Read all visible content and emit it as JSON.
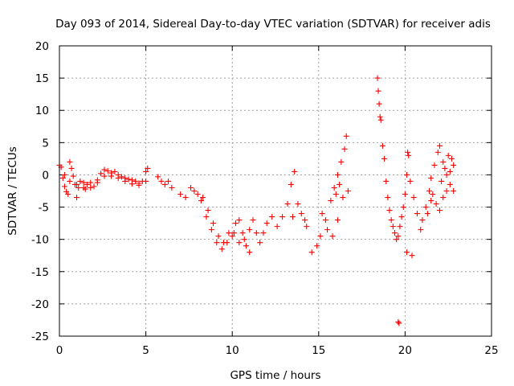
{
  "chart_data": {
    "type": "scatter",
    "title": "Day 093 of 2014, Sidereal Day-to-day VTEC variation (SDTVAR) for receiver adis",
    "xlabel": "GPS time / hours",
    "ylabel": "SDTVAR / TECUs",
    "xlim": [
      0,
      25
    ],
    "ylim": [
      -25,
      20
    ],
    "xticks": [
      0,
      5,
      10,
      15,
      20,
      25
    ],
    "yticks": [
      -25,
      -20,
      -15,
      -10,
      -5,
      0,
      5,
      10,
      15,
      20
    ],
    "grid": true,
    "marker": "plus",
    "colors": {
      "series": "#ff0000",
      "axes": "#000000",
      "grid": "#a0a0a0"
    },
    "series": [
      {
        "name": "SDTVAR",
        "points": [
          [
            0.0,
            1.5
          ],
          [
            0.1,
            1.2
          ],
          [
            0.2,
            -0.5
          ],
          [
            0.3,
            -1.8
          ],
          [
            0.4,
            -2.6
          ],
          [
            0.5,
            -3.0
          ],
          [
            0.6,
            2.0
          ],
          [
            0.7,
            1.0
          ],
          [
            0.8,
            -0.2
          ],
          [
            0.9,
            -1.5
          ],
          [
            1.0,
            -3.5
          ],
          [
            1.1,
            -2.0
          ],
          [
            1.2,
            -1.0
          ],
          [
            1.4,
            -2.0
          ],
          [
            1.5,
            -2.2
          ],
          [
            1.6,
            -1.5
          ],
          [
            1.8,
            -1.2
          ],
          [
            2.0,
            -1.8
          ],
          [
            2.2,
            -0.8
          ],
          [
            2.4,
            0.2
          ],
          [
            2.6,
            0.8
          ],
          [
            2.8,
            0.6
          ],
          [
            3.0,
            0.3
          ],
          [
            3.2,
            0.5
          ],
          [
            3.4,
            0.0
          ],
          [
            3.6,
            -0.3
          ],
          [
            3.8,
            -0.5
          ],
          [
            4.0,
            -0.7
          ],
          [
            4.2,
            -0.8
          ],
          [
            4.4,
            -1.0
          ],
          [
            4.6,
            -1.3
          ],
          [
            4.8,
            -1.0
          ],
          [
            5.0,
            0.5
          ],
          [
            5.1,
            1.0
          ],
          [
            0.3,
            0.0
          ],
          [
            0.6,
            -1.0
          ],
          [
            1.0,
            -1.5
          ],
          [
            1.4,
            -1.2
          ],
          [
            1.8,
            -2.0
          ],
          [
            2.2,
            -1.2
          ],
          [
            2.6,
            -0.2
          ],
          [
            3.0,
            -0.2
          ],
          [
            3.4,
            -0.5
          ],
          [
            3.8,
            -1.0
          ],
          [
            4.2,
            -1.4
          ],
          [
            4.6,
            -1.6
          ],
          [
            5.0,
            -1.0
          ],
          [
            5.7,
            -0.3
          ],
          [
            5.9,
            -1.0
          ],
          [
            6.1,
            -1.5
          ],
          [
            6.3,
            -1.0
          ],
          [
            6.5,
            -2.0
          ],
          [
            7.0,
            -3.0
          ],
          [
            7.3,
            -3.5
          ],
          [
            7.6,
            -2.0
          ],
          [
            7.8,
            -2.5
          ],
          [
            8.0,
            -3.0
          ],
          [
            8.2,
            -4.0
          ],
          [
            8.5,
            -6.5
          ],
          [
            8.8,
            -8.5
          ],
          [
            9.1,
            -10.5
          ],
          [
            9.4,
            -11.5
          ],
          [
            9.7,
            -10.5
          ],
          [
            10.0,
            -9.5
          ],
          [
            10.2,
            -7.5
          ],
          [
            10.4,
            -7.0
          ],
          [
            10.6,
            -9.0
          ],
          [
            10.8,
            -11.0
          ],
          [
            11.0,
            -12.0
          ],
          [
            8.3,
            -3.5
          ],
          [
            8.6,
            -5.5
          ],
          [
            8.9,
            -7.5
          ],
          [
            9.2,
            -9.5
          ],
          [
            9.5,
            -10.5
          ],
          [
            9.8,
            -9.0
          ],
          [
            10.1,
            -9.0
          ],
          [
            10.4,
            -10.5
          ],
          [
            10.7,
            -10.0
          ],
          [
            11.0,
            -8.5
          ],
          [
            11.2,
            -7.0
          ],
          [
            11.4,
            -9.0
          ],
          [
            11.6,
            -10.5
          ],
          [
            11.8,
            -9.0
          ],
          [
            12.0,
            -7.5
          ],
          [
            12.3,
            -6.5
          ],
          [
            12.6,
            -8.0
          ],
          [
            12.9,
            -6.5
          ],
          [
            13.2,
            -4.5
          ],
          [
            13.4,
            -1.5
          ],
          [
            13.6,
            0.5
          ],
          [
            13.5,
            -6.5
          ],
          [
            13.8,
            -4.5
          ],
          [
            14.0,
            -6.0
          ],
          [
            14.2,
            -7.0
          ],
          [
            14.3,
            -8.0
          ],
          [
            14.6,
            -12.0
          ],
          [
            14.9,
            -11.0
          ],
          [
            15.1,
            -9.5
          ],
          [
            15.4,
            -7.0
          ],
          [
            15.7,
            -4.0
          ],
          [
            15.9,
            -2.0
          ],
          [
            16.1,
            0.0
          ],
          [
            16.3,
            2.0
          ],
          [
            16.5,
            4.0
          ],
          [
            16.6,
            6.0
          ],
          [
            15.2,
            -6.0
          ],
          [
            15.5,
            -8.5
          ],
          [
            15.8,
            -9.5
          ],
          [
            16.1,
            -7.0
          ],
          [
            16.4,
            -3.5
          ],
          [
            16.7,
            -2.5
          ],
          [
            16.0,
            -3.0
          ],
          [
            16.2,
            -1.5
          ],
          [
            18.4,
            15.0
          ],
          [
            18.45,
            13.0
          ],
          [
            18.5,
            11.0
          ],
          [
            18.55,
            9.0
          ],
          [
            18.6,
            8.5
          ],
          [
            18.7,
            4.5
          ],
          [
            18.8,
            2.5
          ],
          [
            18.9,
            -1.0
          ],
          [
            19.0,
            -3.5
          ],
          [
            19.1,
            -5.5
          ],
          [
            19.2,
            -7.0
          ],
          [
            19.3,
            -8.0
          ],
          [
            19.4,
            -9.0
          ],
          [
            19.5,
            -10.0
          ],
          [
            19.6,
            -9.5
          ],
          [
            19.7,
            -8.0
          ],
          [
            19.8,
            -6.5
          ],
          [
            19.9,
            -5.0
          ],
          [
            20.0,
            -3.0
          ],
          [
            20.1,
            0.0
          ],
          [
            20.15,
            3.5
          ],
          [
            20.2,
            3.0
          ],
          [
            19.6,
            -22.8
          ],
          [
            19.65,
            -23.0
          ],
          [
            20.1,
            -12.0
          ],
          [
            20.4,
            -12.5
          ],
          [
            20.3,
            -1.0
          ],
          [
            20.5,
            -3.5
          ],
          [
            20.7,
            -6.0
          ],
          [
            20.9,
            -8.5
          ],
          [
            21.0,
            -7.0
          ],
          [
            21.2,
            -5.0
          ],
          [
            21.4,
            -2.5
          ],
          [
            21.5,
            -0.5
          ],
          [
            21.7,
            1.5
          ],
          [
            21.9,
            3.5
          ],
          [
            22.0,
            4.5
          ],
          [
            22.2,
            2.0
          ],
          [
            22.4,
            0.0
          ],
          [
            22.6,
            -1.5
          ],
          [
            22.8,
            -2.5
          ],
          [
            22.7,
            2.5
          ],
          [
            22.5,
            3.0
          ],
          [
            21.6,
            -3.0
          ],
          [
            21.8,
            -4.5
          ],
          [
            22.0,
            -5.5
          ],
          [
            22.2,
            -3.5
          ],
          [
            22.4,
            -2.5
          ],
          [
            21.3,
            -6.0
          ],
          [
            21.5,
            -4.0
          ],
          [
            22.1,
            -1.0
          ],
          [
            22.3,
            1.0
          ],
          [
            22.6,
            0.5
          ],
          [
            22.8,
            1.5
          ]
        ]
      }
    ]
  }
}
